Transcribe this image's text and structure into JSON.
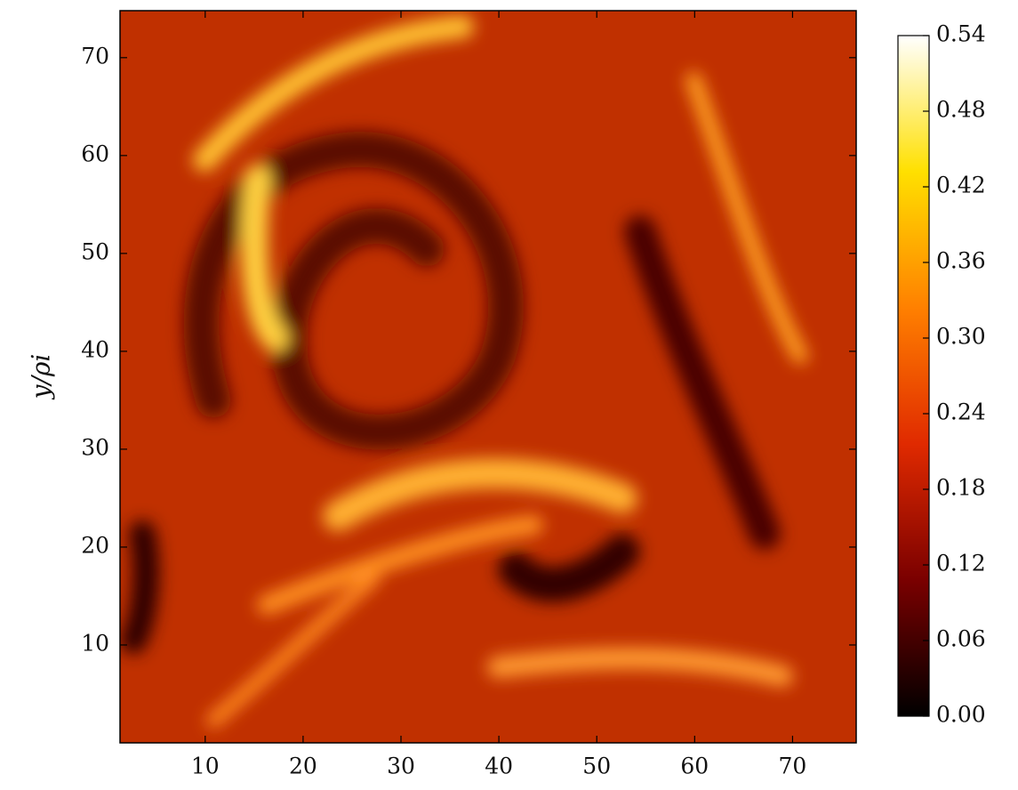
{
  "chart_data": {
    "type": "heatmap",
    "ylabel": "y/ρi",
    "xlim": [
      1.3,
      76.5
    ],
    "xticks": [
      10,
      20,
      30,
      40,
      50,
      60,
      70
    ],
    "ylim": [
      0,
      74.8
    ],
    "yticks": [
      10,
      20,
      30,
      40,
      50,
      60,
      70
    ],
    "colorbar": {
      "lim": [
        0,
        0.54
      ],
      "ticks": [
        {
          "value": 0,
          "label": "0.00"
        },
        0.06,
        0.12,
        0.18,
        0.24,
        {
          "value": 0.3,
          "label": "0.30"
        },
        0.36,
        0.42,
        0.48,
        0.54
      ],
      "colors": [
        "#000000",
        "#7a0000",
        "#e02a00",
        "#ff8000",
        "#ffe000",
        "#ffffff"
      ]
    }
  }
}
